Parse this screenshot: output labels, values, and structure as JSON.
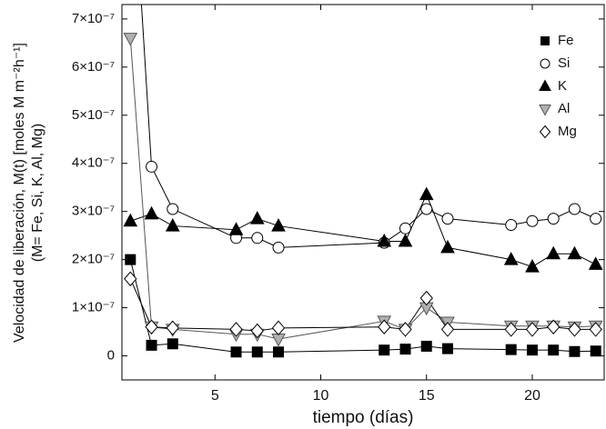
{
  "chart_data": {
    "type": "line",
    "xlabel": "tiempo (días)",
    "ylabel": [
      "Velocidad de liberación, M(t) [moles M m⁻²h⁻¹]",
      "(M= Fe, Si, K, Al, Mg)"
    ],
    "x": [
      1,
      2,
      3,
      6,
      7,
      8,
      13,
      14,
      15,
      16,
      19,
      20,
      21,
      22,
      23
    ],
    "series": [
      {
        "name": "Fe",
        "color": "#000000",
        "fill": "#000000",
        "marker": "square",
        "values": [
          2e-07,
          2.2e-08,
          2.5e-08,
          8e-09,
          8e-09,
          8e-09,
          1.2e-08,
          1.4e-08,
          2e-08,
          1.5e-08,
          1.3e-08,
          1.2e-08,
          1.2e-08,
          9e-09,
          1e-08
        ]
      },
      {
        "name": "Si",
        "color": "#000000",
        "fill": "#ffffff",
        "marker": "circle",
        "values": [
          1.1e-06,
          3.93e-07,
          3.05e-07,
          2.45e-07,
          2.45e-07,
          2.25e-07,
          2.35e-07,
          2.65e-07,
          3.05e-07,
          2.85e-07,
          2.72e-07,
          2.8e-07,
          2.85e-07,
          3.05e-07,
          2.85e-07
        ]
      },
      {
        "name": "K",
        "color": "#000000",
        "fill": "#000000",
        "marker": "triangle-up",
        "values": [
          2.8e-07,
          2.95e-07,
          2.7e-07,
          2.62e-07,
          2.85e-07,
          2.7e-07,
          2.38e-07,
          2.38e-07,
          3.35e-07,
          2.25e-07,
          2e-07,
          1.85e-07,
          2.12e-07,
          2.12e-07,
          1.9e-07
        ]
      },
      {
        "name": "Al",
        "color": "#555555",
        "fill": "#b0b0b0",
        "marker": "triangle-down",
        "values": [
          6.6e-07,
          6e-08,
          5.5e-08,
          4.5e-08,
          4.5e-08,
          3.5e-08,
          7.2e-08,
          5.5e-08,
          1e-07,
          7e-08,
          6.2e-08,
          6.2e-08,
          6.2e-08,
          6e-08,
          6.2e-08
        ]
      },
      {
        "name": "Mg",
        "color": "#000000",
        "fill": "#ffffff",
        "marker": "diamond",
        "values": [
          1.6e-07,
          6e-08,
          5.8e-08,
          5.5e-08,
          5.2e-08,
          5.8e-08,
          6e-08,
          5.5e-08,
          1.2e-07,
          5.5e-08,
          5.5e-08,
          5.5e-08,
          6e-08,
          5.5e-08,
          5.5e-08
        ]
      }
    ],
    "xlim": [
      0.6,
      23.4
    ],
    "xticks": [
      5,
      10,
      15,
      20
    ],
    "ylim": [
      -5e-08,
      7.3e-07
    ],
    "yticks": [
      0,
      {
        "value": 1e-07,
        "label": "1×10⁻⁷"
      },
      {
        "value": 2e-07,
        "label": "2×10⁻⁷"
      },
      {
        "value": 3e-07,
        "label": "3×10⁻⁷"
      },
      {
        "value": 4e-07,
        "label": "4×10⁻⁷"
      },
      {
        "value": 5e-07,
        "label": "5×10⁻⁷"
      },
      {
        "value": 6e-07,
        "label": "6×10⁻⁷"
      },
      {
        "value": 7e-07,
        "label": "7×10⁻⁷"
      }
    ],
    "legend": "upper right",
    "grid": false
  }
}
